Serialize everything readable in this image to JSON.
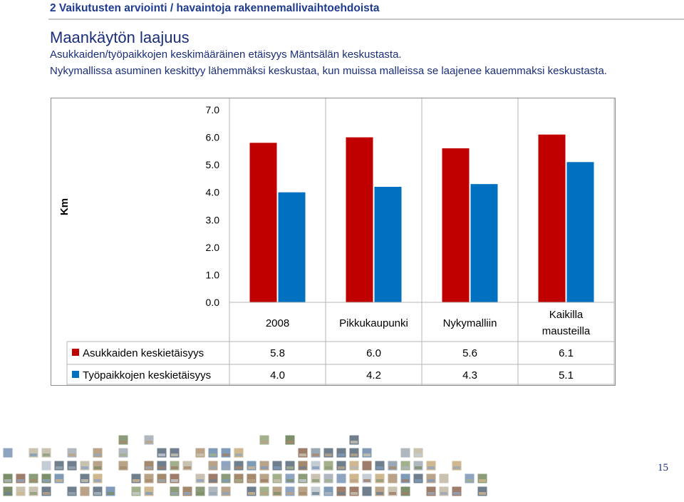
{
  "header": {
    "section_title": "2 Vaikutusten arviointi / havaintoja rakennemallivaihtoehdoista",
    "heading": "Maankäytön laajuus",
    "description_line1": "Asukkaiden/työpaikkojen keskimääräinen etäisyys Mäntsälän keskustasta.",
    "description_line2": "Nykymallissa asuminen keskittyy lähemmäksi keskustaa, kun muissa malleissa se laajenee kauemmaksi keskustasta."
  },
  "chart_data": {
    "type": "bar",
    "ylabel": "Km",
    "ylim": [
      0,
      7
    ],
    "yticks": [
      "0.0",
      "1.0",
      "2.0",
      "3.0",
      "4.0",
      "5.0",
      "6.0",
      "7.0"
    ],
    "grid": false,
    "categories": [
      "2008",
      "Pikkukaupunki",
      "Nykymalliin",
      "Kaikilla mausteilla"
    ],
    "series": [
      {
        "name": "Asukkaiden keskietäisyys",
        "color": "#c00000",
        "values": [
          5.8,
          6.0,
          5.6,
          6.1
        ],
        "labels": [
          "5.8",
          "6.0",
          "5.6",
          "6.1"
        ]
      },
      {
        "name": "Työpaikkojen keskietäisyys",
        "color": "#0070c0",
        "values": [
          4.0,
          4.2,
          4.3,
          5.1
        ],
        "labels": [
          "4.0",
          "4.2",
          "4.3",
          "5.1"
        ]
      }
    ],
    "data_table": true
  },
  "footer": {
    "page_number": "15"
  }
}
